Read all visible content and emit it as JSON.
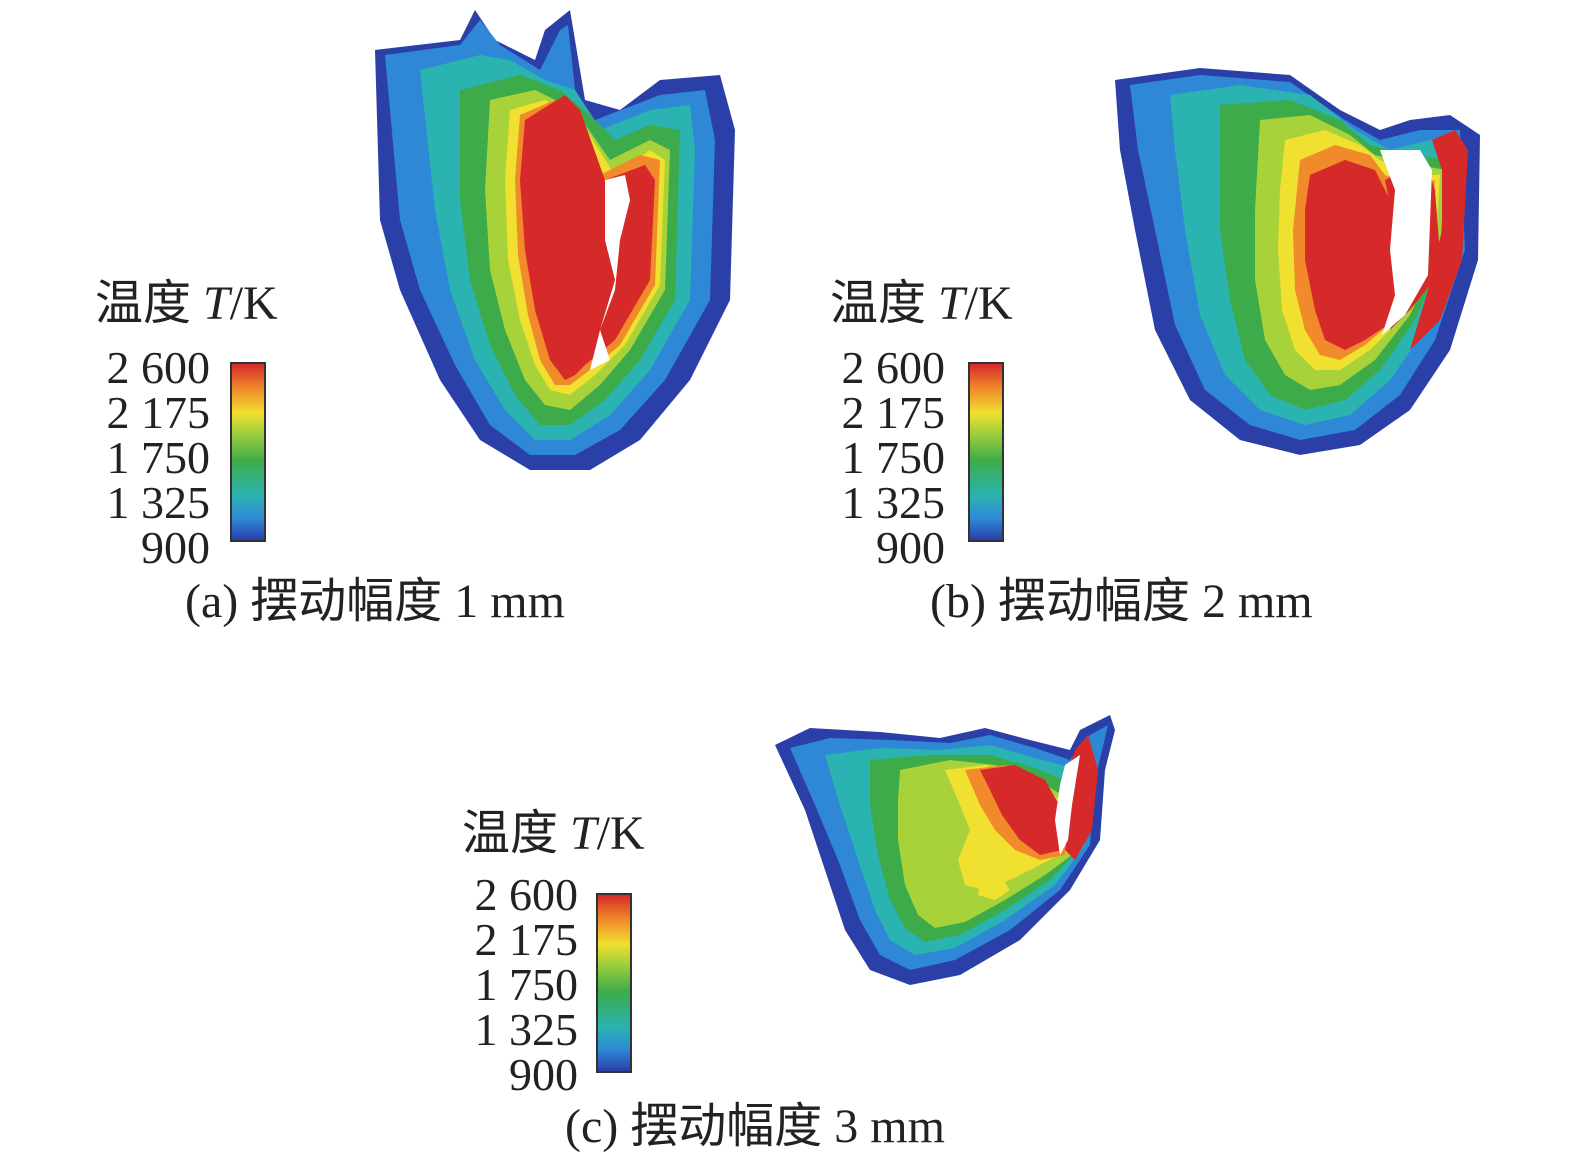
{
  "panels": [
    {
      "id": "a",
      "caption": "(a) 摆动幅度 1 mm",
      "legend": {
        "title_prefix": "温度 ",
        "title_var": "T",
        "title_unit": "/K",
        "ticks": [
          "2 600",
          "2 175",
          "1 750",
          "1 325",
          "900"
        ]
      }
    },
    {
      "id": "b",
      "caption": "(b) 摆动幅度 2 mm",
      "legend": {
        "title_prefix": "温度 ",
        "title_var": "T",
        "title_unit": "/K",
        "ticks": [
          "2 600",
          "2 175",
          "1 750",
          "1 325",
          "900"
        ]
      }
    },
    {
      "id": "c",
      "caption": "(c) 摆动幅度 3 mm",
      "legend": {
        "title_prefix": "温度 ",
        "title_var": "T",
        "title_unit": "/K",
        "ticks": [
          "2 600",
          "2 175",
          "1 750",
          "1 325",
          "900"
        ]
      }
    }
  ],
  "colors": {
    "low": "#2b3fa8",
    "mid_low": "#2ab3b0",
    "mid": "#3dab4a",
    "mid_high": "#f0e030",
    "high": "#d62a2a"
  }
}
